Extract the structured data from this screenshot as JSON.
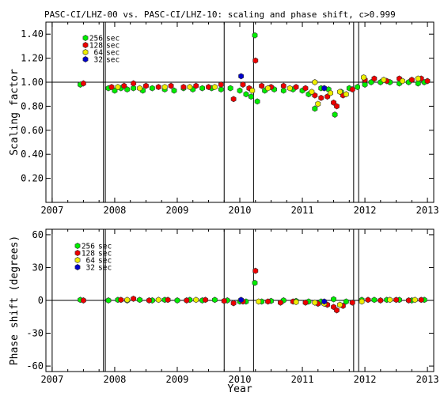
{
  "chart_data": [
    {
      "type": "scatter",
      "title": "PASC-CI/LHZ-00 vs. PASC-CI/LHZ-10: scaling and phase shift, c>0.999",
      "ylabel": "Scaling factor",
      "xlabel": "",
      "xlim": [
        2006.9,
        2013.1
      ],
      "ylim": [
        0,
        1.5
      ],
      "x_ticks": [
        "2007",
        "2008",
        "2009",
        "2010",
        "2011",
        "2012",
        "2013"
      ],
      "y_ticks": [
        "0.20",
        "0.40",
        "0.60",
        "0.80",
        "1.00",
        "1.20",
        "1.40"
      ],
      "reference_line": 1.0,
      "event_lines": [
        2007.0,
        2007.82,
        2007.85,
        2009.75,
        2010.22,
        2011.82,
        2011.9
      ],
      "legend": [
        {
          "name": "256 sec",
          "color": "#00ee00"
        },
        {
          "name": "128 sec",
          "color": "#ee0000"
        },
        {
          "name": "64 sec",
          "color": "#eeee00"
        },
        {
          "name": "32 sec",
          "color": "#0000cc"
        }
      ],
      "series": [
        {
          "name": "256 sec",
          "color": "#00ee00",
          "points": [
            [
              2007.45,
              0.98
            ],
            [
              2007.9,
              0.95
            ],
            [
              2008.0,
              0.93
            ],
            [
              2008.1,
              0.95
            ],
            [
              2008.2,
              0.94
            ],
            [
              2008.3,
              0.95
            ],
            [
              2008.45,
              0.93
            ],
            [
              2008.6,
              0.95
            ],
            [
              2008.8,
              0.94
            ],
            [
              2008.95,
              0.93
            ],
            [
              2009.1,
              0.95
            ],
            [
              2009.25,
              0.94
            ],
            [
              2009.4,
              0.95
            ],
            [
              2009.55,
              0.95
            ],
            [
              2009.7,
              0.94
            ],
            [
              2009.85,
              0.95
            ],
            [
              2010.0,
              0.93
            ],
            [
              2010.1,
              0.9
            ],
            [
              2010.18,
              0.88
            ],
            [
              2010.24,
              1.39
            ],
            [
              2010.28,
              0.84
            ],
            [
              2010.4,
              0.93
            ],
            [
              2010.55,
              0.94
            ],
            [
              2010.7,
              0.93
            ],
            [
              2010.85,
              0.94
            ],
            [
              2011.0,
              0.93
            ],
            [
              2011.1,
              0.9
            ],
            [
              2011.2,
              0.78
            ],
            [
              2011.3,
              0.95
            ],
            [
              2011.42,
              0.94
            ],
            [
              2011.52,
              0.73
            ],
            [
              2011.62,
              0.92
            ],
            [
              2011.75,
              0.95
            ],
            [
              2011.88,
              0.96
            ],
            [
              2012.0,
              0.98
            ],
            [
              2012.1,
              1.0
            ],
            [
              2012.25,
              1.0
            ],
            [
              2012.4,
              1.0
            ],
            [
              2012.55,
              0.99
            ],
            [
              2012.7,
              1.0
            ],
            [
              2012.85,
              0.99
            ],
            [
              2012.95,
              1.0
            ]
          ]
        },
        {
          "name": "128 sec",
          "color": "#ee0000",
          "points": [
            [
              2007.5,
              0.99
            ],
            [
              2007.95,
              0.96
            ],
            [
              2008.15,
              0.97
            ],
            [
              2008.3,
              0.99
            ],
            [
              2008.5,
              0.97
            ],
            [
              2008.7,
              0.96
            ],
            [
              2008.9,
              0.97
            ],
            [
              2009.1,
              0.96
            ],
            [
              2009.3,
              0.97
            ],
            [
              2009.5,
              0.96
            ],
            [
              2009.7,
              0.98
            ],
            [
              2009.9,
              0.86
            ],
            [
              2010.05,
              0.98
            ],
            [
              2010.15,
              0.95
            ],
            [
              2010.25,
              1.18
            ],
            [
              2010.35,
              0.97
            ],
            [
              2010.5,
              0.96
            ],
            [
              2010.7,
              0.97
            ],
            [
              2010.9,
              0.96
            ],
            [
              2011.05,
              0.95
            ],
            [
              2011.2,
              0.89
            ],
            [
              2011.3,
              0.87
            ],
            [
              2011.4,
              0.88
            ],
            [
              2011.5,
              0.83
            ],
            [
              2011.55,
              0.8
            ],
            [
              2011.65,
              0.89
            ],
            [
              2011.8,
              0.94
            ],
            [
              2012.0,
              1.02
            ],
            [
              2012.15,
              1.03
            ],
            [
              2012.35,
              1.01
            ],
            [
              2012.55,
              1.03
            ],
            [
              2012.75,
              1.02
            ],
            [
              2012.9,
              1.03
            ],
            [
              2013.0,
              1.01
            ]
          ]
        },
        {
          "name": "64 sec",
          "color": "#eeee00",
          "points": [
            [
              2008.05,
              0.96
            ],
            [
              2008.4,
              0.95
            ],
            [
              2008.8,
              0.96
            ],
            [
              2009.2,
              0.96
            ],
            [
              2009.6,
              0.96
            ],
            [
              2010.2,
              0.93
            ],
            [
              2010.45,
              0.95
            ],
            [
              2010.8,
              0.95
            ],
            [
              2011.15,
              0.92
            ],
            [
              2011.2,
              1.0
            ],
            [
              2011.25,
              0.82
            ],
            [
              2011.35,
              0.95
            ],
            [
              2011.45,
              0.91
            ],
            [
              2011.6,
              0.92
            ],
            [
              2011.7,
              0.9
            ],
            [
              2011.98,
              1.04
            ],
            [
              2012.3,
              1.02
            ],
            [
              2012.6,
              1.01
            ],
            [
              2012.85,
              1.03
            ]
          ]
        },
        {
          "name": "32 sec",
          "color": "#0000cc",
          "points": [
            [
              2010.02,
              1.05
            ],
            [
              2011.35,
              0.95
            ]
          ]
        }
      ]
    },
    {
      "type": "scatter",
      "title": "",
      "ylabel": "Phase shift (degrees)",
      "xlabel": "Year",
      "xlim": [
        2006.9,
        2013.1
      ],
      "ylim": [
        -65,
        65
      ],
      "x_ticks": [
        "2007",
        "2008",
        "2009",
        "2010",
        "2011",
        "2012",
        "2013"
      ],
      "y_ticks": [
        "-60",
        "-30",
        "0",
        "30",
        "60"
      ],
      "reference_line": 0,
      "event_lines": [
        2007.0,
        2007.82,
        2007.85,
        2009.75,
        2010.22,
        2011.82,
        2011.9
      ],
      "legend": [
        {
          "name": "256 sec",
          "color": "#00ee00"
        },
        {
          "name": "128 sec",
          "color": "#ee0000"
        },
        {
          "name": "64 sec",
          "color": "#eeee00"
        },
        {
          "name": "32 sec",
          "color": "#0000cc"
        }
      ],
      "series": [
        {
          "name": "256 sec",
          "color": "#00ee00",
          "points": [
            [
              2007.45,
              0.5
            ],
            [
              2007.9,
              0
            ],
            [
              2008.05,
              0.5
            ],
            [
              2008.2,
              0
            ],
            [
              2008.4,
              0.5
            ],
            [
              2008.6,
              0
            ],
            [
              2008.8,
              0.5
            ],
            [
              2009.0,
              0
            ],
            [
              2009.2,
              0.5
            ],
            [
              2009.4,
              0
            ],
            [
              2009.6,
              0.5
            ],
            [
              2009.8,
              0
            ],
            [
              2010.0,
              -1
            ],
            [
              2010.1,
              -1
            ],
            [
              2010.24,
              16
            ],
            [
              2010.35,
              -1
            ],
            [
              2010.5,
              -0.5
            ],
            [
              2010.7,
              0
            ],
            [
              2010.9,
              -0.5
            ],
            [
              2011.1,
              -1
            ],
            [
              2011.3,
              -1
            ],
            [
              2011.5,
              1
            ],
            [
              2011.7,
              -1
            ],
            [
              2011.95,
              0.5
            ],
            [
              2012.15,
              0.5
            ],
            [
              2012.35,
              0.5
            ],
            [
              2012.55,
              0.5
            ],
            [
              2012.75,
              0
            ],
            [
              2012.95,
              0.5
            ]
          ]
        },
        {
          "name": "128 sec",
          "color": "#ee0000",
          "points": [
            [
              2007.5,
              0
            ],
            [
              2008.1,
              0.5
            ],
            [
              2008.3,
              1.5
            ],
            [
              2008.55,
              0
            ],
            [
              2008.85,
              0.5
            ],
            [
              2009.15,
              0
            ],
            [
              2009.45,
              0.5
            ],
            [
              2009.75,
              -0.5
            ],
            [
              2009.9,
              -2.5
            ],
            [
              2010.05,
              -1
            ],
            [
              2010.25,
              27
            ],
            [
              2010.45,
              -1
            ],
            [
              2010.65,
              -2
            ],
            [
              2010.85,
              -1
            ],
            [
              2011.05,
              -2
            ],
            [
              2011.25,
              -3
            ],
            [
              2011.4,
              -4
            ],
            [
              2011.5,
              -6
            ],
            [
              2011.55,
              -9
            ],
            [
              2011.65,
              -5
            ],
            [
              2011.8,
              -2
            ],
            [
              2012.05,
              0.5
            ],
            [
              2012.25,
              0
            ],
            [
              2012.5,
              0.5
            ],
            [
              2012.7,
              0
            ],
            [
              2012.9,
              0.5
            ]
          ]
        },
        {
          "name": "64 sec",
          "color": "#eeee00",
          "points": [
            [
              2008.2,
              0.5
            ],
            [
              2008.7,
              0.5
            ],
            [
              2009.3,
              0.5
            ],
            [
              2010.3,
              -1
            ],
            [
              2010.9,
              -1.5
            ],
            [
              2011.2,
              -2
            ],
            [
              2011.35,
              -3
            ],
            [
              2011.6,
              -4
            ],
            [
              2011.95,
              -1
            ],
            [
              2012.4,
              0.5
            ],
            [
              2012.8,
              0.5
            ]
          ]
        },
        {
          "name": "32 sec",
          "color": "#0000cc",
          "points": [
            [
              2010.02,
              0.5
            ],
            [
              2011.35,
              -1
            ]
          ]
        }
      ]
    }
  ]
}
